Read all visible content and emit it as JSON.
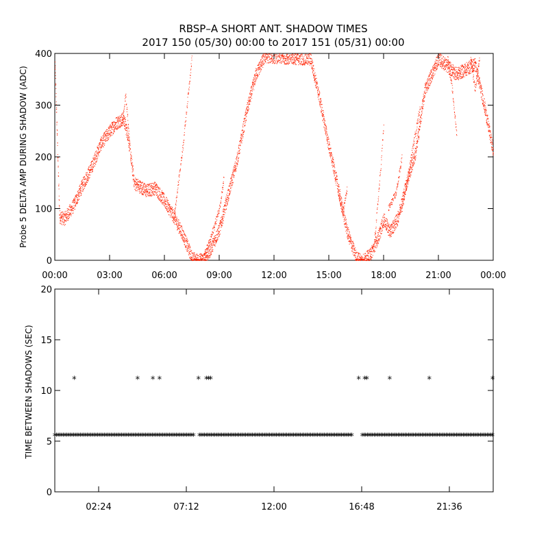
{
  "figure": {
    "title_line1": "RBSP–A SHORT ANT. SHADOW TIMES",
    "title_line2": "2017 150 (05/30) 00:00 to 2017 151 (05/31) 00:00"
  },
  "colors": {
    "top_series": "#ff2000",
    "bottom_series": "#000000",
    "axes": "#000000"
  },
  "chart_data": [
    {
      "type": "scatter",
      "ylabel": "Probe 5 DELTA AMP DURING SHADOW (ADC)",
      "xlim": [
        "00:00",
        "24:00"
      ],
      "ylim": [
        0,
        400
      ],
      "x_tick_labels": [
        "00:00",
        "03:00",
        "06:00",
        "09:00",
        "12:00",
        "15:00",
        "18:00",
        "21:00",
        "00:00"
      ],
      "y_ticks": [
        0,
        100,
        200,
        300,
        400
      ],
      "y_tick_labels": [
        "0",
        "100",
        "200",
        "300",
        "400"
      ],
      "grid": false,
      "series": [
        {
          "marker": "dot",
          "color": "#ff2000",
          "trend": [
            {
              "x": "00:00",
              "y": 380
            },
            {
              "x": "00:15",
              "y": 85
            },
            {
              "x": "00:30",
              "y": 80
            },
            {
              "x": "01:00",
              "y": 105
            },
            {
              "x": "01:30",
              "y": 145
            },
            {
              "x": "02:00",
              "y": 180
            },
            {
              "x": "02:30",
              "y": 225
            },
            {
              "x": "03:00",
              "y": 250
            },
            {
              "x": "03:20",
              "y": 265
            },
            {
              "x": "03:45",
              "y": 275
            },
            {
              "x": "04:00",
              "y": 240
            },
            {
              "x": "04:20",
              "y": 150
            },
            {
              "x": "05:00",
              "y": 135
            },
            {
              "x": "05:30",
              "y": 140
            },
            {
              "x": "06:00",
              "y": 115
            },
            {
              "x": "06:30",
              "y": 85
            },
            {
              "x": "07:00",
              "y": 50
            },
            {
              "x": "07:30",
              "y": 5
            },
            {
              "x": "07:50",
              "y": 0
            },
            {
              "x": "08:10",
              "y": 3
            },
            {
              "x": "08:30",
              "y": 20
            },
            {
              "x": "09:00",
              "y": 60
            },
            {
              "x": "09:30",
              "y": 130
            },
            {
              "x": "10:00",
              "y": 200
            },
            {
              "x": "10:30",
              "y": 290
            },
            {
              "x": "11:00",
              "y": 360
            },
            {
              "x": "11:30",
              "y": 395
            },
            {
              "x": "14:00",
              "y": 390
            },
            {
              "x": "14:30",
              "y": 310
            },
            {
              "x": "15:00",
              "y": 220
            },
            {
              "x": "15:30",
              "y": 140
            },
            {
              "x": "16:00",
              "y": 55
            },
            {
              "x": "16:30",
              "y": 5
            },
            {
              "x": "16:50",
              "y": 0
            },
            {
              "x": "17:15",
              "y": 10
            },
            {
              "x": "17:45",
              "y": 50
            },
            {
              "x": "18:00",
              "y": 80
            },
            {
              "x": "18:20",
              "y": 55
            },
            {
              "x": "18:45",
              "y": 80
            },
            {
              "x": "19:15",
              "y": 150
            },
            {
              "x": "19:45",
              "y": 210
            },
            {
              "x": "20:15",
              "y": 330
            },
            {
              "x": "21:00",
              "y": 390
            },
            {
              "x": "22:00",
              "y": 360
            },
            {
              "x": "23:00",
              "y": 380
            },
            {
              "x": "23:30",
              "y": 300
            },
            {
              "x": "24:00",
              "y": 210
            }
          ],
          "side_branches": [
            [
              {
                "x": "03:40",
                "y": 260
              },
              {
                "x": "03:52",
                "y": 320
              },
              {
                "x": "04:05",
                "y": 230
              }
            ],
            [
              {
                "x": "06:30",
                "y": 80
              },
              {
                "x": "07:00",
                "y": 220
              },
              {
                "x": "07:30",
                "y": 395
              }
            ],
            [
              {
                "x": "08:10",
                "y": 10
              },
              {
                "x": "08:30",
                "y": 40
              },
              {
                "x": "09:00",
                "y": 100
              },
              {
                "x": "09:15",
                "y": 160
              }
            ],
            [
              {
                "x": "15:30",
                "y": 130
              },
              {
                "x": "15:45",
                "y": 90
              },
              {
                "x": "16:00",
                "y": 140
              }
            ],
            [
              {
                "x": "17:30",
                "y": 40
              },
              {
                "x": "17:50",
                "y": 180
              },
              {
                "x": "18:00",
                "y": 265
              }
            ],
            [
              {
                "x": "18:15",
                "y": 100
              },
              {
                "x": "18:40",
                "y": 130
              },
              {
                "x": "19:00",
                "y": 200
              }
            ],
            [
              {
                "x": "19:00",
                "y": 100
              },
              {
                "x": "19:30",
                "y": 200
              },
              {
                "x": "20:00",
                "y": 300
              }
            ],
            [
              {
                "x": "21:30",
                "y": 390
              },
              {
                "x": "21:45",
                "y": 330
              },
              {
                "x": "22:00",
                "y": 240
              }
            ],
            [
              {
                "x": "22:45",
                "y": 395
              },
              {
                "x": "23:00",
                "y": 330
              },
              {
                "x": "23:15",
                "y": 395
              }
            ]
          ]
        }
      ]
    },
    {
      "type": "scatter",
      "ylabel": "TIME BETWEEN SHADOWS (SEC)",
      "xlim": [
        "00:00",
        "24:00"
      ],
      "ylim": [
        0,
        20
      ],
      "x_tick_labels": [
        "02:24",
        "07:12",
        "12:00",
        "16:48",
        "21:36"
      ],
      "y_ticks": [
        0,
        5,
        10,
        15,
        20
      ],
      "y_tick_labels": [
        "0",
        "5",
        "10",
        "15",
        "20"
      ],
      "grid": false,
      "series": [
        {
          "marker": "asterisk",
          "color": "#000000",
          "continuous_band": {
            "y": 5.5,
            "segments": [
              [
                "00:00",
                "07:40"
              ],
              [
                "07:55",
                "16:20"
              ],
              [
                "16:50",
                "24:00"
              ]
            ]
          },
          "outliers": [
            {
              "x": "01:04",
              "y": 11.1
            },
            {
              "x": "04:32",
              "y": 11.1
            },
            {
              "x": "05:22",
              "y": 11.1
            },
            {
              "x": "05:44",
              "y": 11.1
            },
            {
              "x": "07:52",
              "y": 11.1
            },
            {
              "x": "08:18",
              "y": 11.1
            },
            {
              "x": "08:25",
              "y": 11.1
            },
            {
              "x": "08:32",
              "y": 11.1
            },
            {
              "x": "16:38",
              "y": 11.1
            },
            {
              "x": "16:58",
              "y": 11.1
            },
            {
              "x": "17:05",
              "y": 11.1
            },
            {
              "x": "18:20",
              "y": 11.1
            },
            {
              "x": "20:30",
              "y": 11.1
            },
            {
              "x": "23:58",
              "y": 11.1
            }
          ]
        }
      ]
    }
  ]
}
